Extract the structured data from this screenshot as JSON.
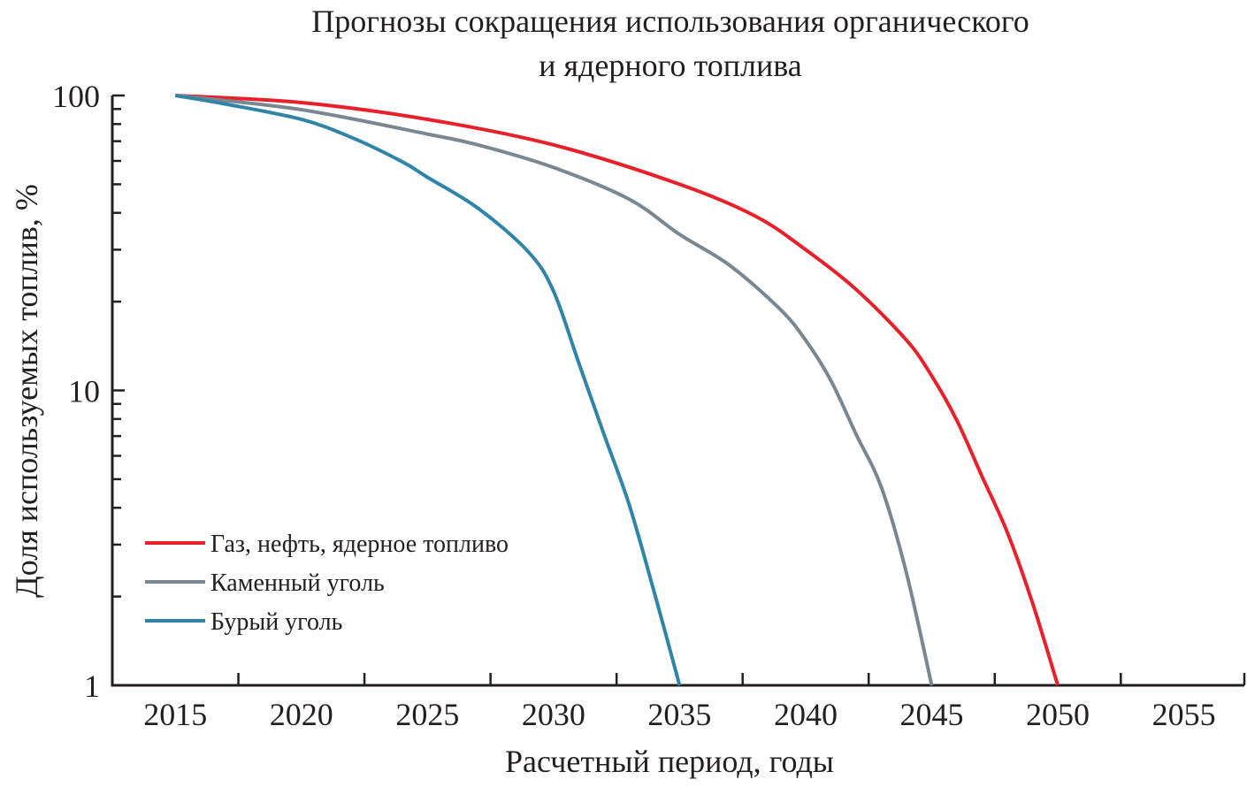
{
  "chart_data": {
    "type": "line",
    "title_lines": [
      "Прогнозы сокращения использования органического",
      "и ядерного топлива"
    ],
    "xlabel": "Расчетный период, годы",
    "ylabel": "Доля используемых топлив, %",
    "xlim": [
      2012.5,
      2057.4
    ],
    "ylim": [
      1,
      100
    ],
    "yscale": "log",
    "x_ticks": [
      2015,
      2020,
      2025,
      2030,
      2035,
      2040,
      2045,
      2050,
      2055
    ],
    "y_ticks": [
      1,
      10,
      100
    ],
    "y_tick_labels": [
      "1",
      "10",
      "100"
    ],
    "grid": false,
    "legend_position": "lower-left",
    "series": [
      {
        "name": "Газ, нефть, ядерное топливо",
        "color": "#e8202a",
        "x": [
          2015,
          2020,
          2025,
          2030,
          2035,
          2038,
          2040,
          2042,
          2044,
          2045,
          2046,
          2047,
          2048,
          2049,
          2050
        ],
        "y": [
          100,
          94.6,
          83,
          68,
          50,
          39,
          30,
          22,
          14.8,
          11.2,
          7.9,
          5.1,
          3.3,
          1.9,
          1
        ]
      },
      {
        "name": "Каменный уголь",
        "color": "#7a8790",
        "x": [
          2015,
          2020,
          2025,
          2027,
          2030,
          2033,
          2035,
          2037,
          2039,
          2040,
          2041,
          2042,
          2043,
          2044,
          2045
        ],
        "y": [
          100,
          89.5,
          74,
          68,
          57,
          44.5,
          33.8,
          26.5,
          18.8,
          14.8,
          10.8,
          7.1,
          4.7,
          2.4,
          1
        ]
      },
      {
        "name": "Бурый уголь",
        "color": "#2f84a8",
        "x": [
          2015,
          2017,
          2020,
          2022,
          2024,
          2025,
          2027,
          2029,
          2030,
          2031,
          2032,
          2033,
          2034,
          2035
        ],
        "y": [
          100,
          93.5,
          83,
          72,
          59.6,
          52.8,
          41.5,
          29.5,
          21.7,
          12.4,
          7.1,
          4.1,
          2.06,
          1
        ]
      }
    ]
  }
}
